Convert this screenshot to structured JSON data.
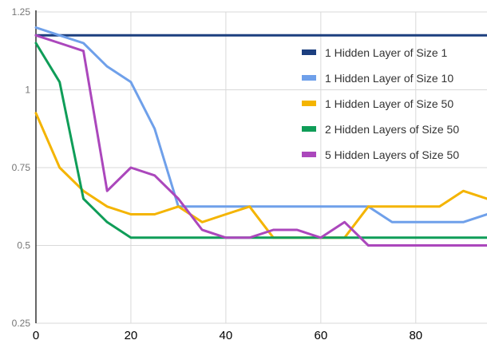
{
  "chart_data": {
    "type": "line",
    "title": "",
    "xlabel": "",
    "ylabel": "",
    "xlim": [
      0,
      95
    ],
    "ylim": [
      0.25,
      1.25
    ],
    "x_ticks": [
      "0",
      "20",
      "40",
      "60",
      "80"
    ],
    "y_ticks": [
      "0.25",
      "0.5",
      "0.75",
      "1",
      "1.25"
    ],
    "grid": true,
    "legend_position": "top-right",
    "series": [
      {
        "name": "1 Hidden Layer of Size 1",
        "color": "#1c3f7f",
        "points": [
          [
            0,
            1.175
          ],
          [
            95,
            1.175
          ]
        ]
      },
      {
        "name": "1 Hidden Layer of Size 10",
        "color": "#6fa0ea",
        "points": [
          [
            0,
            1.2
          ],
          [
            5,
            1.175
          ],
          [
            10,
            1.15
          ],
          [
            15,
            1.075
          ],
          [
            20,
            1.025
          ],
          [
            25,
            0.875
          ],
          [
            30,
            0.625
          ],
          [
            35,
            0.625
          ],
          [
            40,
            0.625
          ],
          [
            45,
            0.625
          ],
          [
            50,
            0.625
          ],
          [
            55,
            0.625
          ],
          [
            60,
            0.625
          ],
          [
            65,
            0.625
          ],
          [
            70,
            0.625
          ],
          [
            75,
            0.575
          ],
          [
            80,
            0.575
          ],
          [
            85,
            0.575
          ],
          [
            90,
            0.575
          ],
          [
            95,
            0.6
          ]
        ]
      },
      {
        "name": "1 Hidden Layer of Size 50",
        "color": "#f4b400",
        "points": [
          [
            0,
            0.925
          ],
          [
            5,
            0.75
          ],
          [
            10,
            0.675
          ],
          [
            15,
            0.625
          ],
          [
            20,
            0.6
          ],
          [
            25,
            0.6
          ],
          [
            30,
            0.625
          ],
          [
            35,
            0.575
          ],
          [
            40,
            0.6
          ],
          [
            45,
            0.625
          ],
          [
            50,
            0.525
          ],
          [
            55,
            0.525
          ],
          [
            60,
            0.525
          ],
          [
            65,
            0.525
          ],
          [
            70,
            0.625
          ],
          [
            75,
            0.625
          ],
          [
            80,
            0.625
          ],
          [
            85,
            0.625
          ],
          [
            90,
            0.675
          ],
          [
            95,
            0.65
          ]
        ]
      },
      {
        "name": "2 Hidden Layers of Size 50",
        "color": "#0f9d58",
        "points": [
          [
            0,
            1.15
          ],
          [
            5,
            1.025
          ],
          [
            10,
            0.65
          ],
          [
            15,
            0.575
          ],
          [
            20,
            0.525
          ],
          [
            25,
            0.525
          ],
          [
            30,
            0.525
          ],
          [
            35,
            0.525
          ],
          [
            40,
            0.525
          ],
          [
            45,
            0.525
          ],
          [
            50,
            0.525
          ],
          [
            55,
            0.525
          ],
          [
            60,
            0.525
          ],
          [
            65,
            0.525
          ],
          [
            70,
            0.525
          ],
          [
            75,
            0.525
          ],
          [
            80,
            0.525
          ],
          [
            85,
            0.525
          ],
          [
            90,
            0.525
          ],
          [
            95,
            0.525
          ]
        ]
      },
      {
        "name": "5 Hidden Layers of Size 50",
        "color": "#ab47bc",
        "points": [
          [
            0,
            1.175
          ],
          [
            5,
            1.15
          ],
          [
            10,
            1.125
          ],
          [
            15,
            0.675
          ],
          [
            20,
            0.75
          ],
          [
            25,
            0.725
          ],
          [
            30,
            0.65
          ],
          [
            35,
            0.55
          ],
          [
            40,
            0.525
          ],
          [
            45,
            0.525
          ],
          [
            50,
            0.55
          ],
          [
            55,
            0.55
          ],
          [
            60,
            0.525
          ],
          [
            65,
            0.575
          ],
          [
            70,
            0.5
          ],
          [
            75,
            0.5
          ],
          [
            80,
            0.5
          ],
          [
            85,
            0.5
          ],
          [
            90,
            0.5
          ],
          [
            95,
            0.5
          ]
        ]
      }
    ]
  }
}
